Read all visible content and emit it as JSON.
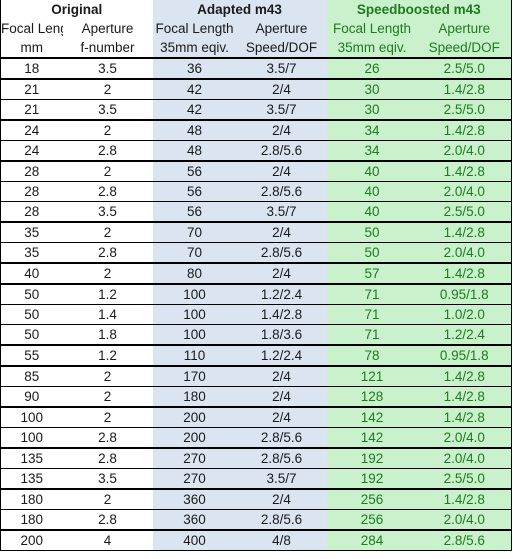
{
  "headers": {
    "group_original": "Original",
    "group_adapted": "Adapted m43",
    "group_speedboosted": "Speedboosted m43",
    "row1": [
      "Focal Length",
      "Aperture",
      "Focal Length",
      "Aperture",
      "Focal Length",
      "Aperture"
    ],
    "row2": [
      "mm",
      "f-number",
      "35mm eqiv.",
      "Speed/DOF",
      "35mm eqiv.",
      "Speed/DOF"
    ]
  },
  "colors": {
    "adapted_bg": "#dbe5f1",
    "speedboosted_bg": "#c9f1cc",
    "speedboosted_text": "#1e7b1e",
    "border": "#000000"
  },
  "groups": [
    [
      [
        "18",
        "3.5",
        "36",
        "3.5/7",
        "26",
        "2.5/5.0"
      ]
    ],
    [
      [
        "21",
        "2",
        "42",
        "2/4",
        "30",
        "1.4/2.8"
      ],
      [
        "21",
        "3.5",
        "42",
        "3.5/7",
        "30",
        "2.5/5.0"
      ]
    ],
    [
      [
        "24",
        "2",
        "48",
        "2/4",
        "34",
        "1.4/2.8"
      ],
      [
        "24",
        "2.8",
        "48",
        "2.8/5.6",
        "34",
        "2.0/4.0"
      ]
    ],
    [
      [
        "28",
        "2",
        "56",
        "2/4",
        "40",
        "1.4/2.8"
      ],
      [
        "28",
        "2.8",
        "56",
        "2.8/5.6",
        "40",
        "2.0/4.0"
      ],
      [
        "28",
        "3.5",
        "56",
        "3.5/7",
        "40",
        "2.5/5.0"
      ]
    ],
    [
      [
        "35",
        "2",
        "70",
        "2/4",
        "50",
        "1.4/2.8"
      ],
      [
        "35",
        "2.8",
        "70",
        "2.8/5.6",
        "50",
        "2.0/4.0"
      ]
    ],
    [
      [
        "40",
        "2",
        "80",
        "2/4",
        "57",
        "1.4/2.8"
      ]
    ],
    [
      [
        "50",
        "1.2",
        "100",
        "1.2/2.4",
        "71",
        "0.95/1.8"
      ],
      [
        "50",
        "1.4",
        "100",
        "1.4/2.8",
        "71",
        "1.0/2.0"
      ],
      [
        "50",
        "1.8",
        "100",
        "1.8/3.6",
        "71",
        "1.2/2.4"
      ]
    ],
    [
      [
        "55",
        "1.2",
        "110",
        "1.2/2.4",
        "78",
        "0.95/1.8"
      ]
    ],
    [
      [
        "85",
        "2",
        "170",
        "2/4",
        "121",
        "1.4/2.8"
      ],
      [
        "90",
        "2",
        "180",
        "2/4",
        "128",
        "1.4/2.8"
      ]
    ],
    [
      [
        "100",
        "2",
        "200",
        "2/4",
        "142",
        "1.4/2.8"
      ],
      [
        "100",
        "2.8",
        "200",
        "2.8/5.6",
        "142",
        "2.0/4.0"
      ]
    ],
    [
      [
        "135",
        "2.8",
        "270",
        "2.8/5.6",
        "192",
        "2.0/4.0"
      ],
      [
        "135",
        "3.5",
        "270",
        "3.5/7",
        "192",
        "2.5/5.0"
      ]
    ],
    [
      [
        "180",
        "2",
        "360",
        "2/4",
        "256",
        "1.4/2.8"
      ],
      [
        "180",
        "2.8",
        "360",
        "2.8/5.6",
        "256",
        "2.0/4.0"
      ]
    ],
    [
      [
        "200",
        "4",
        "400",
        "4/8",
        "284",
        "2.8/5.6"
      ]
    ]
  ]
}
